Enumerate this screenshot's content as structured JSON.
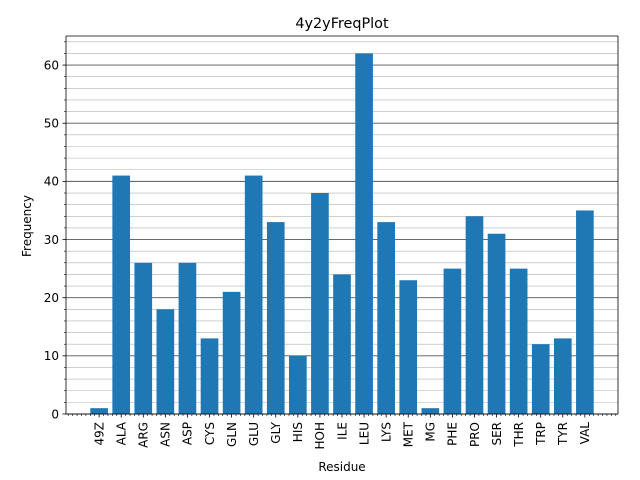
{
  "chart_data": {
    "type": "bar",
    "title": "4y2yFreqPlot",
    "xlabel": "Residue",
    "ylabel": "Frequency",
    "categories": [
      "49Z",
      "ALA",
      "ARG",
      "ASN",
      "ASP",
      "CYS",
      "GLN",
      "GLU",
      "GLY",
      "HIS",
      "HOH",
      "ILE",
      "LEU",
      "LYS",
      "MET",
      "MG",
      "PHE",
      "PRO",
      "SER",
      "THR",
      "TRP",
      "TYR",
      "VAL"
    ],
    "values": [
      1,
      41,
      26,
      18,
      26,
      13,
      21,
      41,
      33,
      10,
      38,
      24,
      62,
      33,
      23,
      1,
      25,
      34,
      31,
      25,
      12,
      13,
      35
    ],
    "ylim": [
      0,
      65
    ],
    "yticks": [
      0,
      10,
      20,
      30,
      40,
      50,
      60
    ],
    "grid": {
      "major": true,
      "minor": true
    },
    "bar_color": "#1f77b4"
  }
}
